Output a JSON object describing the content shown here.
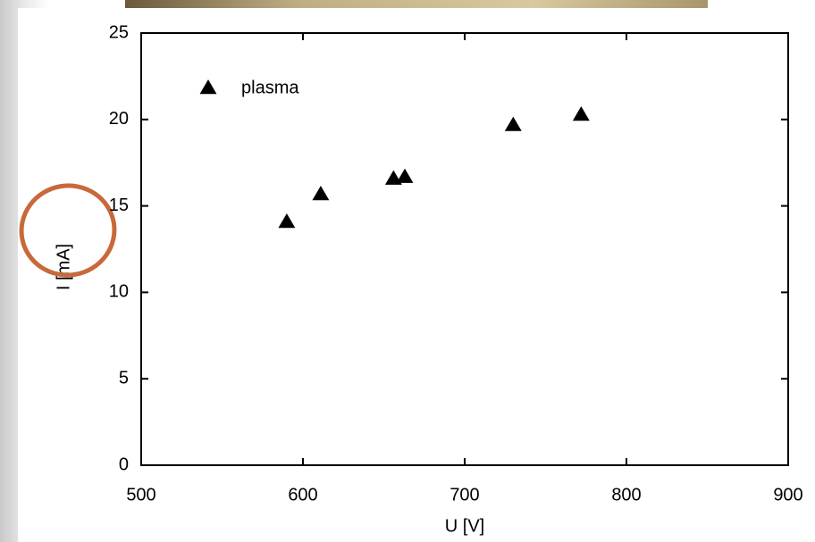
{
  "chart_data": {
    "type": "scatter",
    "xlabel": "U [V]",
    "ylabel": "I [mA]",
    "x": [
      590,
      611,
      656,
      663,
      730,
      772
    ],
    "series": [
      {
        "name": "plasma",
        "color": "#000000",
        "values": [
          14.1,
          15.7,
          16.6,
          16.7,
          19.7,
          20.3
        ]
      }
    ],
    "xlim": [
      500,
      900
    ],
    "xticks": [
      500,
      600,
      700,
      800,
      900
    ],
    "ylim": [
      0,
      25
    ],
    "yticks": [
      0,
      5,
      10,
      15,
      20,
      25
    ],
    "legend": "upper left",
    "grid": false
  }
}
